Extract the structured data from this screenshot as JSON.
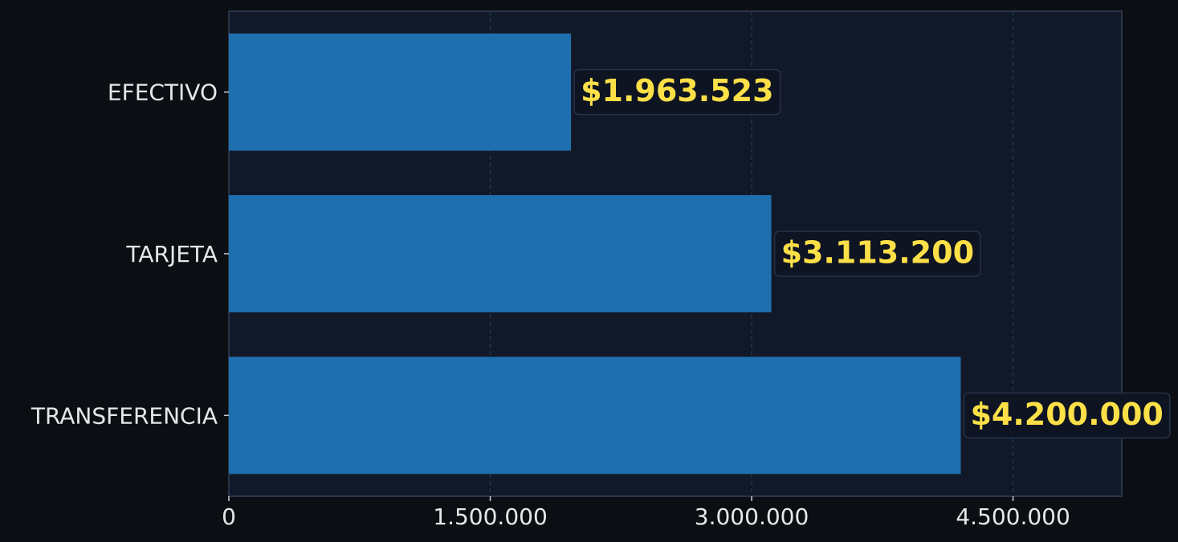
{
  "chart_data": {
    "type": "barh",
    "categories": [
      "EFECTIVO",
      "TARJETA",
      "TRANSFERENCIA"
    ],
    "values": [
      1963523,
      3113200,
      4200000
    ],
    "value_labels": [
      "$1.963.523",
      "$3.113.200",
      "$4.200.000"
    ],
    "color": "#1f6fae",
    "xlim": [
      0,
      5124000
    ],
    "xticks": [
      0,
      {
        "value": 1500000,
        "label": "1.500.000"
      },
      {
        "value": 3000000,
        "label": "3.000.000"
      },
      {
        "value": 4500000,
        "label": "4.500.000"
      }
    ],
    "grid": true
  }
}
